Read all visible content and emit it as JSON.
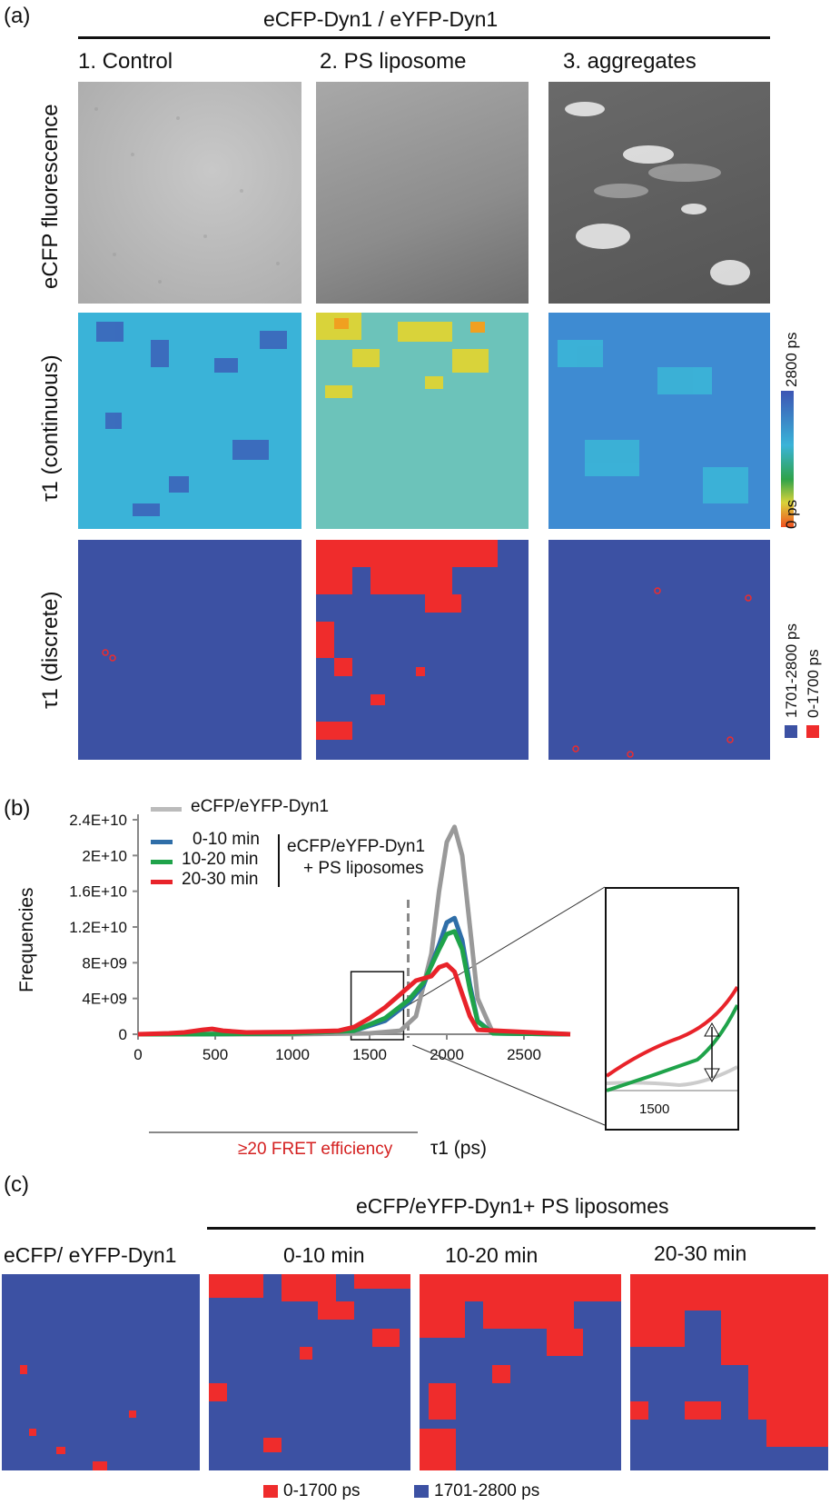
{
  "panel_a": {
    "label": "(a)",
    "header": "eCFP-Dyn1 / eYFP-Dyn1",
    "columns": [
      "1. Control",
      "2. PS liposome",
      "3. aggregates"
    ],
    "rows": [
      "eCFP fluorescence",
      "τ1 (continuous)",
      "τ1 (discrete)"
    ],
    "colorbar": {
      "max_label": "2800 ps",
      "min_label": "0 ps"
    },
    "discrete_legend": [
      "1701-2800 ps",
      "0-1700 ps"
    ]
  },
  "panel_b": {
    "label": "(b)",
    "legend_top": "eCFP/eYFP-Dyn1",
    "legend_items": [
      "0-10 min",
      "10-20 min",
      "20-30 min"
    ],
    "legend_group": [
      "eCFP/eYFP-Dyn1",
      "+ PS liposomes"
    ],
    "fret_label": "≥20 FRET efficiency",
    "inset_tick": "1500"
  },
  "panel_c": {
    "label": "(c)",
    "group_header": "eCFP/eYFP-Dyn1+ PS liposomes",
    "columns": [
      "eCFP/ eYFP-Dyn1",
      "0-10 min",
      "10-20 min",
      "20-30 min"
    ],
    "legend": [
      "0-1700 ps",
      "1701-2800 ps"
    ]
  },
  "colors": {
    "grey": "#999999",
    "blue": "#2f6ea8",
    "green": "#1fa34a",
    "red": "#e8232a",
    "map_blue": "#3c51a3",
    "map_red": "#ef2c2c"
  },
  "chart_data": {
    "type": "line",
    "title": "",
    "xlabel": "τ1 (ps)",
    "ylabel": "Frequencies",
    "xlim": [
      0,
      2800
    ],
    "ylim": [
      0,
      24000000000
    ],
    "x_ticks": [
      "0",
      "500",
      "1000",
      "1500",
      "2000",
      "2500"
    ],
    "y_ticks": [
      "0",
      "4E+09",
      "8E+09",
      "1.2E+10",
      "1.6E+10",
      "2E+10",
      "2.4E+10"
    ],
    "threshold_x": 1750,
    "series": [
      {
        "name": "eCFP/eYFP-Dyn1",
        "color": "#999999",
        "x": [
          0,
          300,
          1000,
          1500,
          1700,
          1800,
          1900,
          1950,
          2000,
          2050,
          2100,
          2150,
          2200,
          2300,
          2800
        ],
        "y": [
          0,
          0,
          0,
          100000000,
          400000000,
          2000000000,
          9000000000,
          16000000000,
          21500000000,
          23200000000,
          20000000000,
          12000000000,
          4000000000,
          100000000,
          0
        ]
      },
      {
        "name": "0-10 min",
        "color": "#2f6ea8",
        "x": [
          0,
          300,
          1000,
          1400,
          1600,
          1750,
          1850,
          1950,
          2000,
          2050,
          2100,
          2150,
          2200,
          2300,
          2800
        ],
        "y": [
          0,
          0,
          100000000,
          400000000,
          1500000000,
          3500000000,
          5500000000,
          10000000000,
          12500000000,
          13000000000,
          10500000000,
          5500000000,
          1500000000,
          100000000,
          0
        ]
      },
      {
        "name": "10-20 min",
        "color": "#1fa34a",
        "x": [
          0,
          300,
          1000,
          1400,
          1600,
          1750,
          1850,
          1950,
          2000,
          2050,
          2100,
          2150,
          2200,
          2300,
          2800
        ],
        "y": [
          0,
          0,
          100000000,
          400000000,
          1800000000,
          3800000000,
          5800000000,
          9500000000,
          11200000000,
          11500000000,
          9500000000,
          5000000000,
          1400000000,
          100000000,
          0
        ]
      },
      {
        "name": "20-30 min",
        "color": "#e8232a",
        "x": [
          0,
          200,
          300,
          420,
          480,
          550,
          700,
          1000,
          1300,
          1400,
          1500,
          1600,
          1700,
          1800,
          1900,
          1950,
          2000,
          2050,
          2100,
          2150,
          2200,
          2800
        ],
        "y": [
          0,
          100000000,
          200000000,
          500000000,
          600000000,
          400000000,
          200000000,
          250000000,
          400000000,
          800000000,
          1800000000,
          3000000000,
          4500000000,
          6000000000,
          6500000000,
          7500000000,
          7800000000,
          7000000000,
          4500000000,
          2000000000,
          500000000,
          0
        ]
      }
    ]
  }
}
